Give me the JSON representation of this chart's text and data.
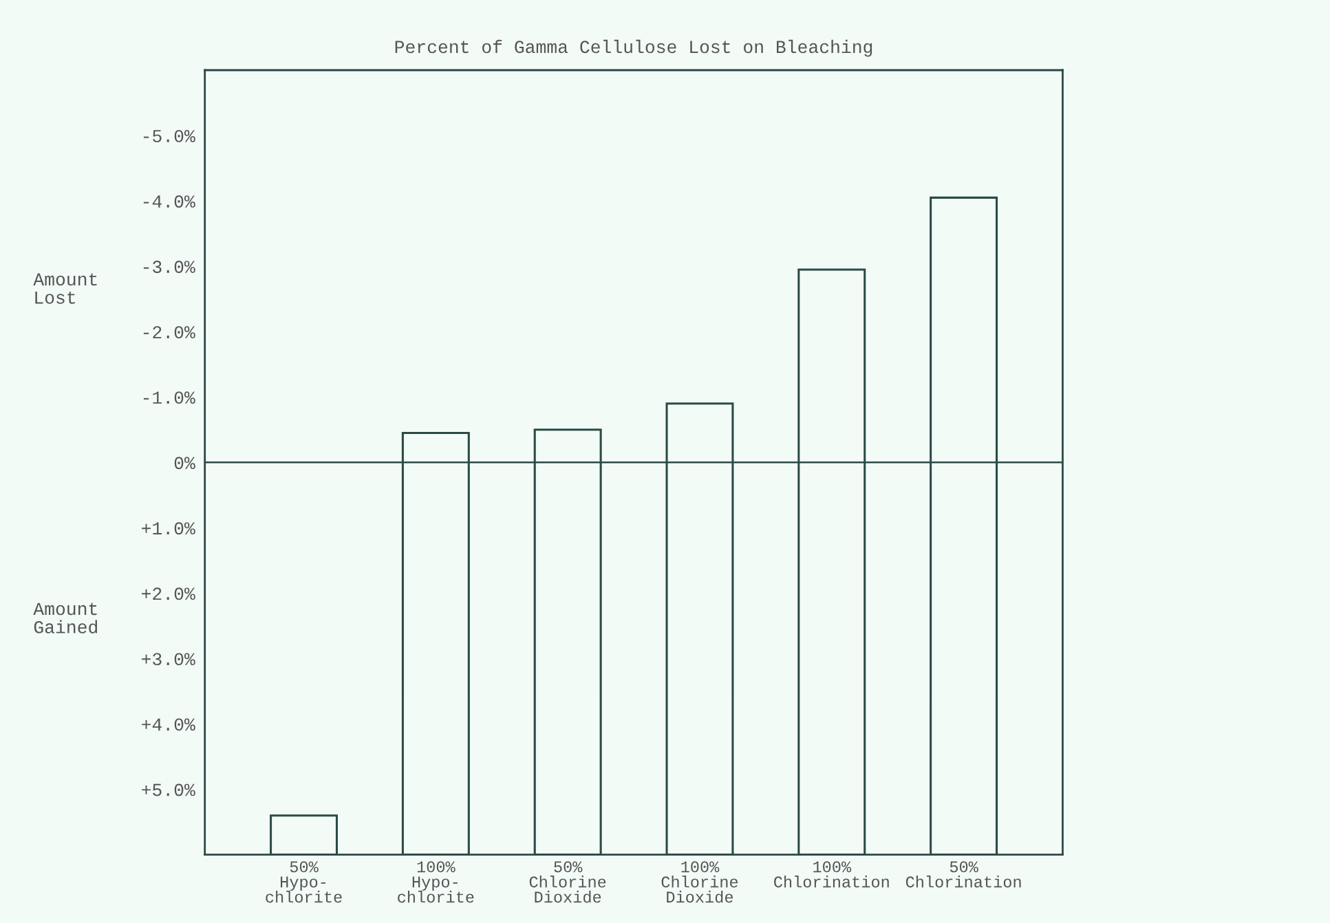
{
  "chart_data": {
    "type": "bar",
    "title": "Percent of Gamma Cellulose Lost on Bleaching",
    "categories": [
      "50%\nHypo-\nchlorite",
      "100%\nHypo-\nchlorite",
      "50%\nChlorine\nDioxide",
      "100%\nChlorine\nDioxide",
      "100%\nChlorination",
      "50%\nChlorination"
    ],
    "base": [
      6,
      6,
      6,
      6,
      6,
      6
    ],
    "values": [
      -0.6,
      -6.45,
      -6.5,
      -6.9,
      -8.95,
      -10.05
    ],
    "color": "#2a4a45",
    "ylim": [
      6,
      -6
    ],
    "yticks": [
      {
        "value": -5,
        "label": "-5.0%"
      },
      {
        "value": -4,
        "label": "-4.0%"
      },
      {
        "value": -3,
        "label": "-3.0%"
      },
      {
        "value": -2,
        "label": "-2.0%"
      },
      {
        "value": -1,
        "label": "-1.0%"
      },
      {
        "value": 0,
        "label": "0%"
      },
      {
        "value": 1,
        "label": "+1.0%"
      },
      {
        "value": 2,
        "label": "+2.0%"
      },
      {
        "value": 3,
        "label": "+3.0%"
      },
      {
        "value": 4,
        "label": "+4.0%"
      },
      {
        "value": 5,
        "label": "+5.0%"
      }
    ],
    "ref_lines": [
      {
        "axis": "y",
        "value": 0,
        "color": "#2a4a45"
      }
    ],
    "annotations": [
      "Amount\nLost",
      "Amount\nGained"
    ]
  }
}
